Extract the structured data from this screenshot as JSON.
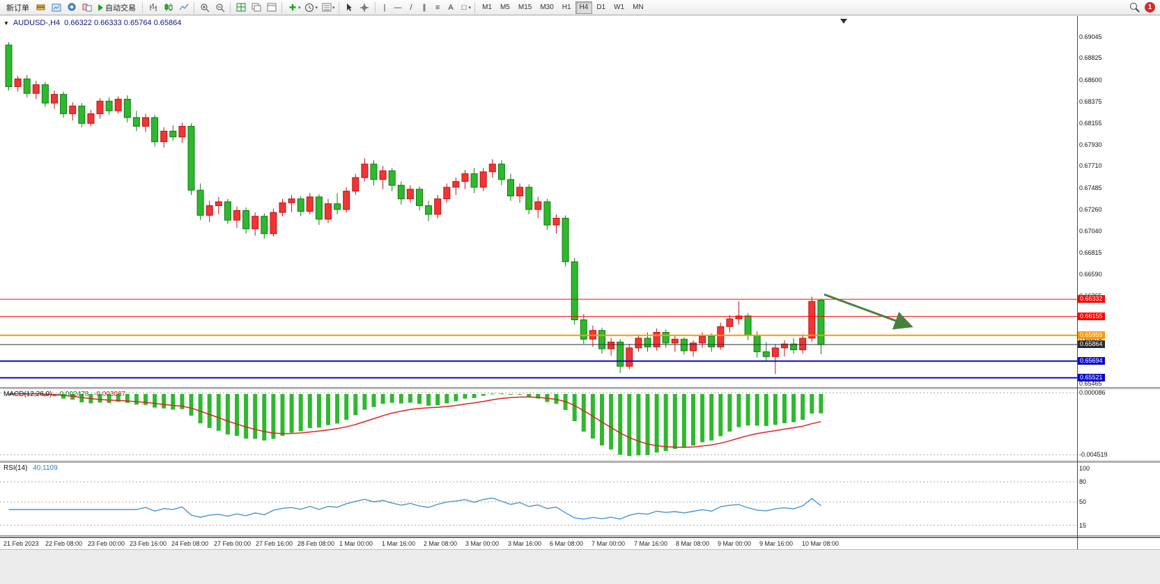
{
  "toolbar": {
    "new_order_label": "新订单",
    "auto_trading_label": "自动交易",
    "line_tools": [
      "|",
      "—",
      "/",
      "∥",
      "≡",
      "A",
      "□"
    ],
    "timeframes": [
      "M1",
      "M5",
      "M15",
      "M30",
      "H1",
      "H4",
      "D1",
      "W1",
      "MN"
    ],
    "active_timeframe": "H4",
    "notification_badge": "1"
  },
  "chart_header": {
    "symbol_period": "AUDUSD-,H4",
    "ohlc": "0.66322 0.66333 0.65764 0.65864"
  },
  "chart_data": {
    "type": "candlestick",
    "symbol": "AUDUSD-",
    "timeframe": "H4",
    "ylim": [
      0.65426,
      0.6926
    ],
    "colors": {
      "up": "#f03535",
      "up_border": "#c01212",
      "down": "#2eb82e",
      "down_border": "#107a10",
      "macd_histogram": "#2eb82e",
      "macd_signal": "#e02020",
      "rsi_line": "#4596d2",
      "arrow": "#47823c"
    },
    "price_axis_labels": [
      "0.69045",
      "0.68825",
      "0.68600",
      "0.68375",
      "0.68155",
      "0.67930",
      "0.67710",
      "0.67485",
      "0.67260",
      "0.67040",
      "0.66815",
      "0.66590",
      "0.66365",
      "0.66140",
      "0.65915",
      "0.65690",
      "0.65465"
    ],
    "hlines": [
      {
        "price": 0.66332,
        "label": "0.66332",
        "color": "#ff0000",
        "width": 1
      },
      {
        "price": 0.66155,
        "label": "0.66155",
        "color": "#ff0000",
        "width": 1
      },
      {
        "price": 0.65959,
        "label": "0.65959",
        "color": "#ff9800",
        "width": 2
      },
      {
        "price": 0.65864,
        "label": "0.65864",
        "color": "#2b2b2b",
        "width": 1
      },
      {
        "price": 0.65694,
        "label": "0.65694",
        "color": "#0a0acc",
        "width": 2
      },
      {
        "price": 0.65521,
        "label": "0.65521",
        "color": "#0a0acc",
        "width": 2
      }
    ],
    "date_labels": [
      "21 Feb 2023",
      "22 Feb 08:00",
      "23 Feb 00:00",
      "23 Feb 16:00",
      "24 Feb 08:00",
      "27 Feb 00:00",
      "27 Feb 16:00",
      "28 Feb 08:00",
      "1 Mar 00:00",
      "1 Mar 16:00",
      "2 Mar 08:00",
      "3 Mar 00:00",
      "3 Mar 16:00",
      "6 Mar 08:00",
      "7 Mar 00:00",
      "7 Mar 16:00",
      "8 Mar 08:00",
      "9 Mar 00:00",
      "9 Mar 16:00",
      "10 Mar 08:00"
    ],
    "indicators": {
      "macd": {
        "name": "MACD(12,26,9)",
        "value_main": "-0.002478",
        "value_signal": "-0.003087",
        "fast": 12,
        "slow": 26,
        "signal": 9,
        "axis_labels": [
          "0.000086",
          "-0.004519"
        ],
        "axis_values": [
          8.6e-05,
          -0.004519
        ]
      },
      "rsi": {
        "name": "RSI(14)",
        "value": "40.1109",
        "period": 14,
        "axis_labels": [
          "100",
          "80",
          "50",
          "15"
        ],
        "axis_values": [
          100,
          80,
          50,
          15
        ],
        "levels": [
          80,
          50,
          15
        ]
      }
    },
    "candles_ohlc": [
      [
        0.6896,
        0.6899,
        0.6849,
        0.6853
      ],
      [
        0.6853,
        0.6864,
        0.6848,
        0.6861
      ],
      [
        0.6861,
        0.6865,
        0.6842,
        0.6846
      ],
      [
        0.6846,
        0.6859,
        0.684,
        0.6855
      ],
      [
        0.6855,
        0.6858,
        0.6832,
        0.6836
      ],
      [
        0.6836,
        0.6849,
        0.683,
        0.6845
      ],
      [
        0.6845,
        0.6848,
        0.6821,
        0.6825
      ],
      [
        0.6825,
        0.6837,
        0.6818,
        0.6833
      ],
      [
        0.6833,
        0.6836,
        0.6811,
        0.6815
      ],
      [
        0.6815,
        0.6829,
        0.6812,
        0.6825
      ],
      [
        0.6825,
        0.6841,
        0.682,
        0.6838
      ],
      [
        0.6838,
        0.6842,
        0.6824,
        0.6828
      ],
      [
        0.6828,
        0.6843,
        0.6825,
        0.684
      ],
      [
        0.684,
        0.6844,
        0.6816,
        0.6821
      ],
      [
        0.6821,
        0.6828,
        0.6807,
        0.6812
      ],
      [
        0.6812,
        0.6825,
        0.6806,
        0.6821
      ],
      [
        0.6821,
        0.6824,
        0.6791,
        0.6796
      ],
      [
        0.6796,
        0.6811,
        0.679,
        0.6807
      ],
      [
        0.6807,
        0.6813,
        0.6797,
        0.6801
      ],
      [
        0.6801,
        0.6816,
        0.6795,
        0.6812
      ],
      [
        0.6812,
        0.6815,
        0.6741,
        0.6746
      ],
      [
        0.6746,
        0.6753,
        0.6715,
        0.672
      ],
      [
        0.672,
        0.6735,
        0.6713,
        0.673
      ],
      [
        0.673,
        0.6739,
        0.6721,
        0.6734
      ],
      [
        0.6734,
        0.6737,
        0.6711,
        0.6715
      ],
      [
        0.6715,
        0.6729,
        0.6707,
        0.6725
      ],
      [
        0.6725,
        0.6728,
        0.6701,
        0.6706
      ],
      [
        0.6706,
        0.6723,
        0.6699,
        0.6719
      ],
      [
        0.6719,
        0.6722,
        0.6696,
        0.6701
      ],
      [
        0.6701,
        0.6727,
        0.6698,
        0.6723
      ],
      [
        0.6723,
        0.6737,
        0.6719,
        0.6733
      ],
      [
        0.6733,
        0.6741,
        0.6723,
        0.6737
      ],
      [
        0.6737,
        0.674,
        0.6719,
        0.6724
      ],
      [
        0.6724,
        0.6743,
        0.6721,
        0.6739
      ],
      [
        0.6739,
        0.6742,
        0.671,
        0.6716
      ],
      [
        0.6716,
        0.6737,
        0.6712,
        0.6732
      ],
      [
        0.6732,
        0.6743,
        0.6721,
        0.6726
      ],
      [
        0.6726,
        0.6749,
        0.6723,
        0.6745
      ],
      [
        0.6745,
        0.6763,
        0.6741,
        0.6759
      ],
      [
        0.6759,
        0.6779,
        0.6755,
        0.6773
      ],
      [
        0.6773,
        0.6777,
        0.6751,
        0.6757
      ],
      [
        0.6757,
        0.6771,
        0.6747,
        0.6766
      ],
      [
        0.6766,
        0.6769,
        0.6745,
        0.6751
      ],
      [
        0.6751,
        0.6755,
        0.6731,
        0.6737
      ],
      [
        0.6737,
        0.6751,
        0.6733,
        0.6747
      ],
      [
        0.6747,
        0.675,
        0.6725,
        0.673
      ],
      [
        0.673,
        0.6735,
        0.6714,
        0.6721
      ],
      [
        0.6721,
        0.6741,
        0.6717,
        0.6737
      ],
      [
        0.6737,
        0.6753,
        0.6733,
        0.6749
      ],
      [
        0.6749,
        0.6759,
        0.6741,
        0.6755
      ],
      [
        0.6755,
        0.6767,
        0.6747,
        0.6763
      ],
      [
        0.6763,
        0.6769,
        0.6743,
        0.6749
      ],
      [
        0.6749,
        0.6769,
        0.6745,
        0.6765
      ],
      [
        0.6765,
        0.6778,
        0.6759,
        0.6773
      ],
      [
        0.6773,
        0.6777,
        0.6751,
        0.6757
      ],
      [
        0.6757,
        0.6763,
        0.6735,
        0.674
      ],
      [
        0.674,
        0.6753,
        0.6733,
        0.6749
      ],
      [
        0.6749,
        0.6752,
        0.6721,
        0.6726
      ],
      [
        0.6726,
        0.6739,
        0.6717,
        0.6734
      ],
      [
        0.6734,
        0.6737,
        0.6705,
        0.671
      ],
      [
        0.671,
        0.6721,
        0.6701,
        0.6717
      ],
      [
        0.6717,
        0.672,
        0.6667,
        0.6672
      ],
      [
        0.6672,
        0.6676,
        0.6607,
        0.6612
      ],
      [
        0.6612,
        0.6618,
        0.6587,
        0.6592
      ],
      [
        0.6592,
        0.6606,
        0.6584,
        0.6601
      ],
      [
        0.6601,
        0.6604,
        0.6577,
        0.6582
      ],
      [
        0.6582,
        0.6593,
        0.6575,
        0.6589
      ],
      [
        0.6589,
        0.6592,
        0.6557,
        0.6564
      ],
      [
        0.6564,
        0.6587,
        0.6561,
        0.6583
      ],
      [
        0.6583,
        0.6597,
        0.6579,
        0.6593
      ],
      [
        0.6593,
        0.6599,
        0.6579,
        0.6584
      ],
      [
        0.6584,
        0.6603,
        0.658,
        0.6599
      ],
      [
        0.6599,
        0.6602,
        0.6583,
        0.6588
      ],
      [
        0.6588,
        0.6596,
        0.6579,
        0.6592
      ],
      [
        0.6592,
        0.6594,
        0.6576,
        0.658
      ],
      [
        0.658,
        0.6591,
        0.6574,
        0.6588
      ],
      [
        0.6588,
        0.6599,
        0.6583,
        0.6595
      ],
      [
        0.6595,
        0.6598,
        0.6579,
        0.6584
      ],
      [
        0.6584,
        0.6609,
        0.6581,
        0.6605
      ],
      [
        0.6605,
        0.6617,
        0.6599,
        0.6613
      ],
      [
        0.6613,
        0.6631,
        0.6607,
        0.6616
      ],
      [
        0.6616,
        0.6619,
        0.6591,
        0.6596
      ],
      [
        0.6596,
        0.66,
        0.6573,
        0.6579
      ],
      [
        0.6579,
        0.6589,
        0.6569,
        0.6574
      ],
      [
        0.6574,
        0.6587,
        0.6556,
        0.6583
      ],
      [
        0.6583,
        0.6591,
        0.6574,
        0.6587
      ],
      [
        0.6587,
        0.6593,
        0.6577,
        0.6581
      ],
      [
        0.6581,
        0.6597,
        0.6577,
        0.6593
      ],
      [
        0.6593,
        0.6636,
        0.6589,
        0.6631
      ],
      [
        0.66322,
        0.66333,
        0.65764,
        0.65864
      ]
    ]
  }
}
